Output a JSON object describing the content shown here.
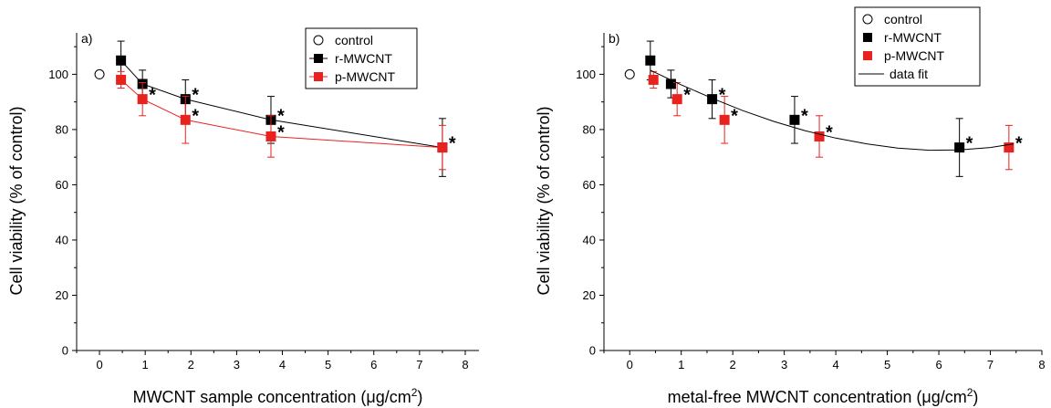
{
  "chart_data": [
    {
      "type": "scatter",
      "panel_label": "a)",
      "xlabel": "MWCNT sample concentration (μg/cm²)",
      "xlabel_parts": [
        "MWCNT sample concentration (",
        "μ",
        "g/cm",
        "2",
        ")"
      ],
      "ylabel": "Cell viability (% of control)",
      "xlim": [
        -0.5,
        8.3
      ],
      "ylim": [
        0,
        115
      ],
      "xticks": [
        0,
        1,
        2,
        3,
        4,
        5,
        6,
        7,
        8
      ],
      "yticks": [
        0,
        20,
        40,
        60,
        80,
        100
      ],
      "grid": false,
      "legend_position": "top-right",
      "legend": [
        "control",
        "r-MWCNT",
        "p-MWCNT"
      ],
      "series": [
        {
          "name": "control",
          "color": "#000000",
          "marker": "open-circle",
          "line": false,
          "points": [
            {
              "x": 0,
              "y": 100
            }
          ]
        },
        {
          "name": "r-MWCNT",
          "color": "#000000",
          "marker": "square",
          "line": true,
          "points": [
            {
              "x": 0.47,
              "y": 105,
              "err": 7,
              "star": false
            },
            {
              "x": 0.94,
              "y": 96.5,
              "err": 5,
              "star": false
            },
            {
              "x": 1.88,
              "y": 91,
              "err": 7,
              "star": true
            },
            {
              "x": 3.75,
              "y": 83.5,
              "err": 8.5,
              "star": true
            },
            {
              "x": 7.5,
              "y": 73.5,
              "err": 10.5,
              "star": true
            }
          ]
        },
        {
          "name": "p-MWCNT",
          "color": "#e8231f",
          "marker": "square",
          "line": true,
          "points": [
            {
              "x": 0.47,
              "y": 98,
              "err": 3,
              "star": false
            },
            {
              "x": 0.94,
              "y": 91,
              "err": 6,
              "star": true
            },
            {
              "x": 1.88,
              "y": 83.5,
              "err": 8.5,
              "star": true
            },
            {
              "x": 3.75,
              "y": 77.5,
              "err": 7.5,
              "star": true
            },
            {
              "x": 7.5,
              "y": 73.5,
              "err": 8,
              "star": false
            }
          ]
        }
      ]
    },
    {
      "type": "scatter",
      "panel_label": "b)",
      "xlabel": "metal-free MWCNT concentration (μg/cm²)",
      "xlabel_parts": [
        "metal-free MWCNT concentration (",
        "μ",
        "g/cm",
        "2",
        ")"
      ],
      "ylabel": "Cell viability (% of control)",
      "xlim": [
        -0.5,
        8.0
      ],
      "ylim": [
        0,
        115
      ],
      "xticks": [
        0,
        1,
        2,
        3,
        4,
        5,
        6,
        7,
        8
      ],
      "yticks": [
        0,
        20,
        40,
        60,
        80,
        100
      ],
      "grid": false,
      "legend_position": "top-right",
      "legend": [
        "control",
        "r-MWCNT",
        "p-MWCNT",
        "data fit"
      ],
      "series": [
        {
          "name": "control",
          "color": "#000000",
          "marker": "open-circle",
          "line": false,
          "points": [
            {
              "x": 0,
              "y": 100
            }
          ]
        },
        {
          "name": "r-MWCNT",
          "color": "#000000",
          "marker": "square",
          "line": false,
          "points": [
            {
              "x": 0.4,
              "y": 105,
              "err": 7,
              "star": false
            },
            {
              "x": 0.8,
              "y": 96.5,
              "err": 5,
              "star": false
            },
            {
              "x": 1.6,
              "y": 91,
              "err": 7,
              "star": true
            },
            {
              "x": 3.2,
              "y": 83.5,
              "err": 8.5,
              "star": true
            },
            {
              "x": 6.4,
              "y": 73.5,
              "err": 10.5,
              "star": true
            }
          ]
        },
        {
          "name": "p-MWCNT",
          "color": "#e8231f",
          "marker": "square",
          "line": false,
          "points": [
            {
              "x": 0.46,
              "y": 98,
              "err": 3,
              "star": false
            },
            {
              "x": 0.92,
              "y": 91,
              "err": 6,
              "star": true
            },
            {
              "x": 1.84,
              "y": 83.5,
              "err": 8.5,
              "star": true
            },
            {
              "x": 3.68,
              "y": 77.5,
              "err": 7.5,
              "star": true
            },
            {
              "x": 7.36,
              "y": 73.5,
              "err": 8,
              "star": true
            }
          ]
        },
        {
          "name": "data fit",
          "color": "#000000",
          "marker": "none",
          "line": true,
          "curve": [
            {
              "x": 0.4,
              "y": 101.5
            },
            {
              "x": 1.0,
              "y": 96.2
            },
            {
              "x": 1.6,
              "y": 91.3
            },
            {
              "x": 2.2,
              "y": 86.8
            },
            {
              "x": 2.8,
              "y": 82.9
            },
            {
              "x": 3.4,
              "y": 79.6
            },
            {
              "x": 4.0,
              "y": 76.9
            },
            {
              "x": 4.6,
              "y": 74.8
            },
            {
              "x": 5.2,
              "y": 73.3
            },
            {
              "x": 5.8,
              "y": 72.5
            },
            {
              "x": 6.4,
              "y": 72.6
            },
            {
              "x": 7.0,
              "y": 73.5
            },
            {
              "x": 7.45,
              "y": 74.8
            }
          ]
        }
      ]
    }
  ]
}
